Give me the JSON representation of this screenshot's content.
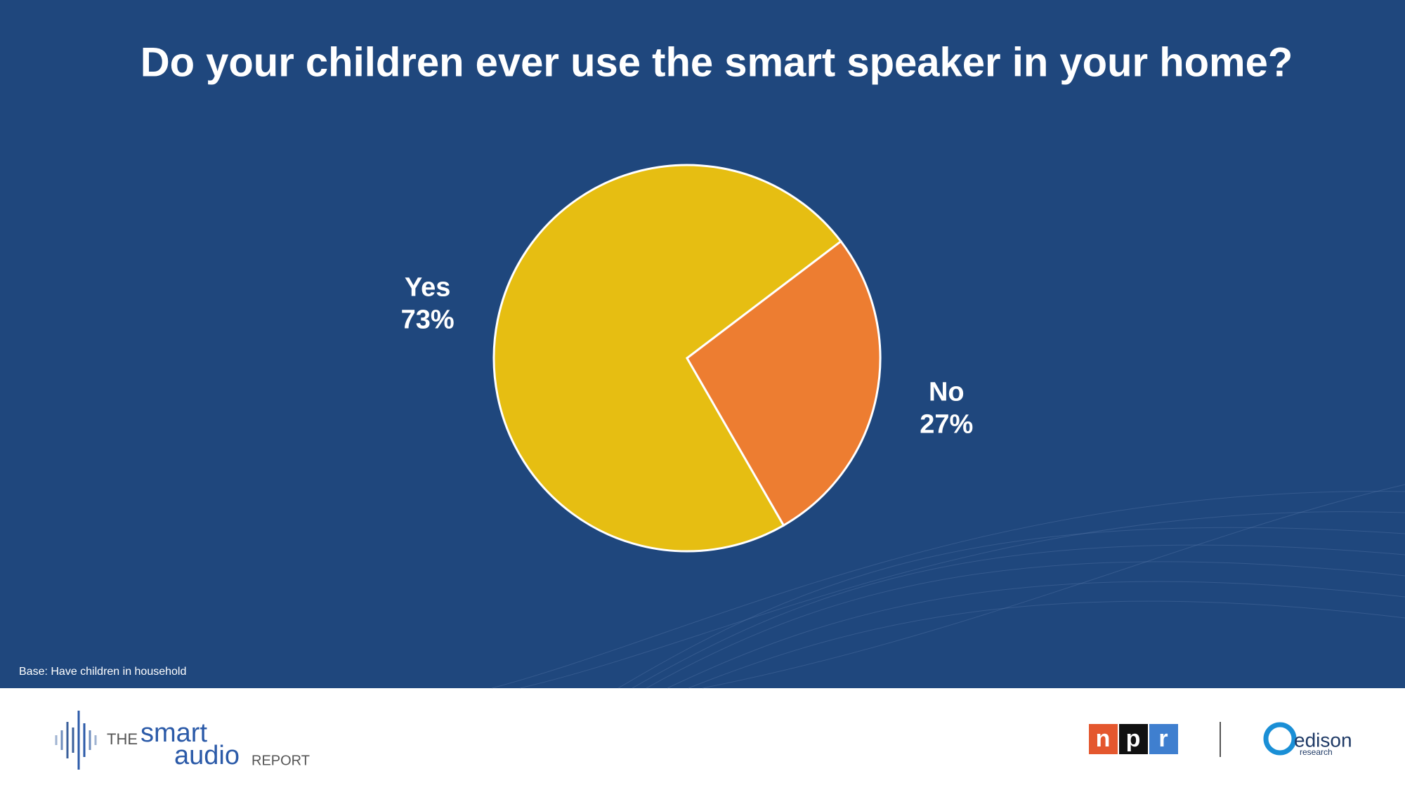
{
  "chart_data": {
    "type": "pie",
    "title": "Do your children ever use the smart speaker in your home?",
    "categories": [
      "Yes",
      "No"
    ],
    "values": [
      73,
      27
    ],
    "value_labels": [
      "73%",
      "27%"
    ],
    "colors": [
      "#e6be12",
      "#ed7d31"
    ],
    "footnote": "Base: Have children in household"
  },
  "branding": {
    "report": [
      "THE",
      "smart",
      "audio",
      "REPORT"
    ],
    "npr": [
      "n",
      "p",
      "r"
    ],
    "edison": [
      "edison",
      "research"
    ]
  }
}
